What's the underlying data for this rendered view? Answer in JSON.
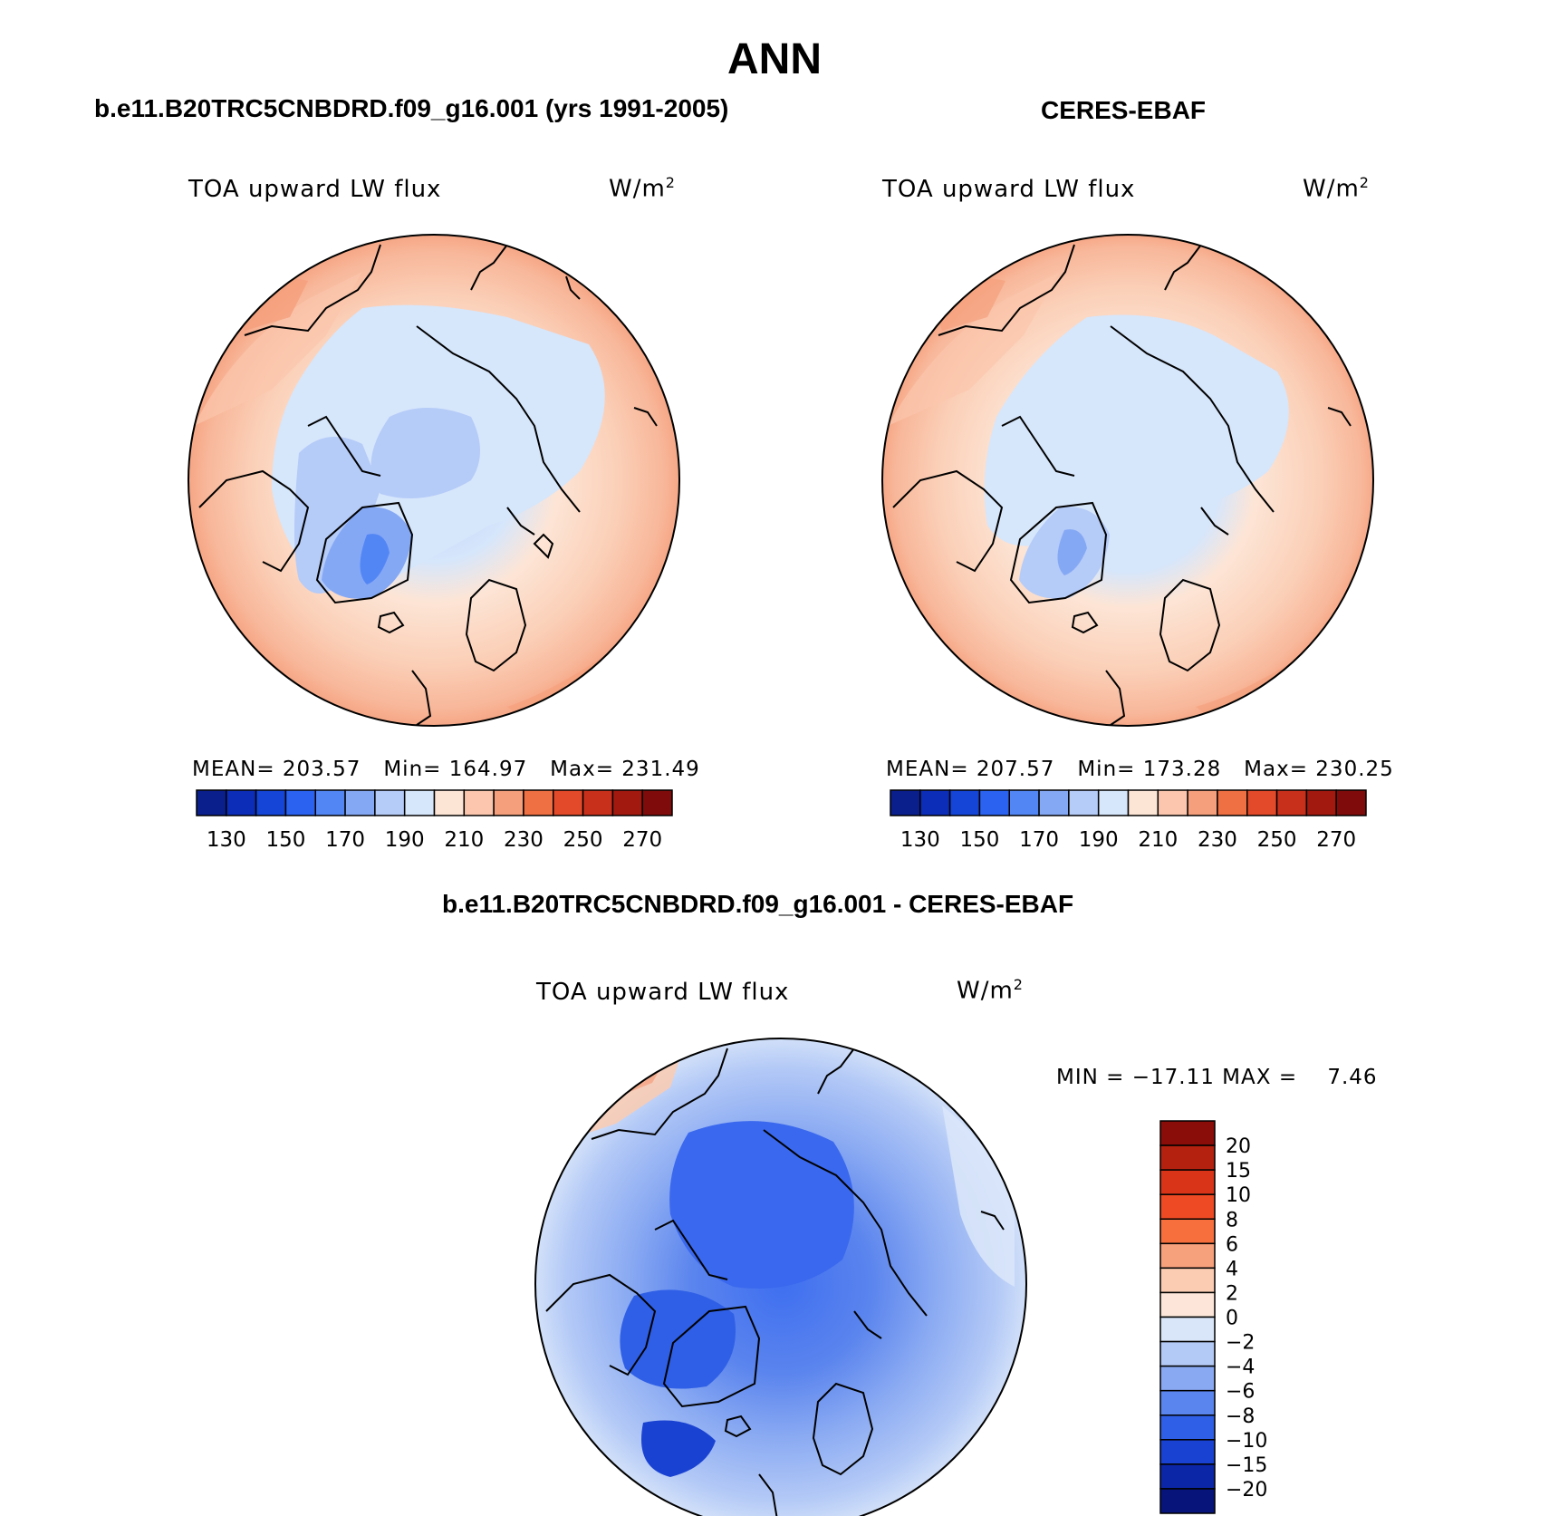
{
  "figure": {
    "title": "ANN",
    "left_panel_title": "b.e11.B20TRC5CNBDRD.f09_g16.001 (yrs 1991-2005)",
    "right_panel_title": "CERES-EBAF",
    "diff_panel_title": "b.e11.B20TRC5CNBDRD.f09_g16.001 - CERES-EBAF"
  },
  "chart_data": [
    {
      "type": "heatmap",
      "projection": "north polar stereographic",
      "variable": "TOA upward LW flux",
      "units_base": "W/m",
      "units_exp": "2",
      "stats": {
        "mean_label": "MEAN=",
        "mean": "203.57",
        "min_label": "Min=",
        "min": "164.97",
        "max_label": "Max=",
        "max": "231.49"
      },
      "colorbar_levels": [
        "130",
        "150",
        "170",
        "190",
        "210",
        "230",
        "250",
        "270"
      ],
      "colorbar_colors": [
        "#0a1e8c",
        "#0c2db7",
        "#1545d6",
        "#2b63f0",
        "#5386f5",
        "#85a8f5",
        "#b5cbf8",
        "#d6e6fb",
        "#fde5d6",
        "#fbc6ad",
        "#f59f7c",
        "#ef7043",
        "#e34a2a",
        "#c8301c",
        "#a2190f",
        "#7f0c0a"
      ],
      "approx_field": {
        "north_pole": 190,
        "greenland_core": 170,
        "low_latitude_edge": 230
      }
    },
    {
      "type": "heatmap",
      "projection": "north polar stereographic",
      "variable": "TOA upward LW flux",
      "units_base": "W/m",
      "units_exp": "2",
      "stats": {
        "mean_label": "MEAN=",
        "mean": "207.57",
        "min_label": "Min=",
        "min": "173.28",
        "max_label": "Max=",
        "max": "230.25"
      },
      "colorbar_levels": [
        "130",
        "150",
        "170",
        "190",
        "210",
        "230",
        "250",
        "270"
      ],
      "colorbar_colors": [
        "#0a1e8c",
        "#0c2db7",
        "#1545d6",
        "#2b63f0",
        "#5386f5",
        "#85a8f5",
        "#b5cbf8",
        "#d6e6fb",
        "#fde5d6",
        "#fbc6ad",
        "#f59f7c",
        "#ef7043",
        "#e34a2a",
        "#c8301c",
        "#a2190f",
        "#7f0c0a"
      ],
      "approx_field": {
        "north_pole": 195,
        "greenland_core": 180,
        "low_latitude_edge": 230
      }
    },
    {
      "type": "heatmap",
      "projection": "north polar stereographic",
      "variable": "TOA upward LW flux",
      "units_base": "W/m",
      "units_exp": "2",
      "stats": {
        "min_label": "MIN =",
        "min": "−17.11",
        "max_label": "MAX =",
        "max": "7.46"
      },
      "colorbar_levels": [
        "20",
        "15",
        "10",
        "8",
        "6",
        "4",
        "2",
        "0",
        "−2",
        "−4",
        "−6",
        "−8",
        "−10",
        "−15",
        "−20"
      ],
      "colorbar_colors": [
        "#8a0d0a",
        "#b5210f",
        "#d93418",
        "#ee4a23",
        "#f76f3c",
        "#f7a07c",
        "#fbcbb2",
        "#fde6d9",
        "#d9e6fa",
        "#b3c9f6",
        "#89a9f2",
        "#5a84ee",
        "#2f5fe6",
        "#1a42d2",
        "#0c26a8",
        "#07147a"
      ],
      "approx_field": {
        "arctic_ocean": -8,
        "greenland": -10,
        "north_pacific": 4
      }
    }
  ],
  "colors": {
    "background": "#ffffff",
    "outline": "#000000"
  }
}
